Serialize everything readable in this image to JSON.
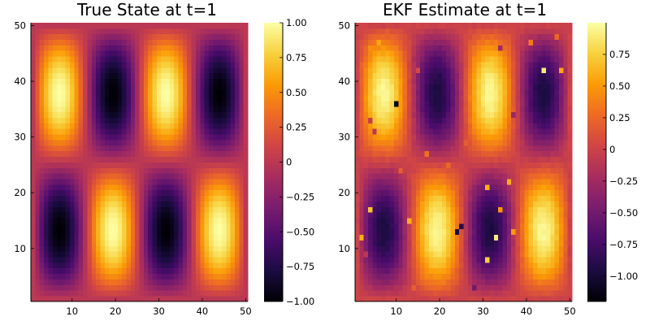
{
  "chart_data": [
    {
      "type": "heatmap",
      "title": "True State at t=1",
      "colormap": "inferno",
      "grid_size": [
        50,
        50
      ],
      "xlim": [
        0.5,
        50.5
      ],
      "ylim": [
        0.5,
        50.5
      ],
      "x_ticks": [
        10,
        20,
        30,
        40,
        50
      ],
      "x_tick_labels": [
        "10",
        "20",
        "30",
        "40",
        "50"
      ],
      "y_ticks": [
        10,
        20,
        30,
        40,
        50
      ],
      "y_tick_labels": [
        "10",
        "20",
        "30",
        "40",
        "50"
      ],
      "field": "z(x,y) = sin(2*pi*(x-1)/24.5) * -sin(2*pi*(y-1)/49), x,y = 1..50",
      "zlim": [
        -1.0,
        1.0
      ],
      "colorbar_ticks": [
        1.0,
        0.75,
        0.5,
        0.25,
        0,
        -0.25,
        -0.5,
        -0.75,
        -1.0
      ],
      "colorbar_labels": [
        "1.00",
        "0.75",
        "0.50",
        "0.25",
        "0",
        "−0.25",
        "−0.50",
        "−0.75",
        "−1.00"
      ]
    },
    {
      "type": "heatmap",
      "title": "EKF Estimate at t=1",
      "colormap": "inferno",
      "grid_size": [
        50,
        50
      ],
      "xlim": [
        0.5,
        50.5
      ],
      "ylim": [
        0.5,
        50.5
      ],
      "x_ticks": [
        10,
        20,
        30,
        40,
        50
      ],
      "x_tick_labels": [
        "10",
        "20",
        "30",
        "40",
        "50"
      ],
      "y_ticks": [
        10,
        20,
        30,
        40,
        50
      ],
      "y_tick_labels": [
        "10",
        "20",
        "30",
        "40",
        "50"
      ],
      "field": "true state with small estimation noise and scattered outlier pixels",
      "zlim": [
        -1.2,
        1.0
      ],
      "colorbar_ticks": [
        0.75,
        0.5,
        0.25,
        0,
        -0.25,
        -0.5,
        -0.75,
        -1.0
      ],
      "colorbar_labels": [
        "0.75",
        "0.50",
        "0.25",
        "0",
        "−0.25",
        "−0.50",
        "−0.75",
        "−1.00"
      ],
      "outliers": [
        [
          10,
          36,
          -1.2
        ],
        [
          4,
          46,
          0.45
        ],
        [
          6,
          47,
          0.55
        ],
        [
          2,
          43,
          0.25
        ],
        [
          8,
          49,
          0.2
        ],
        [
          14,
          44,
          -0.2
        ],
        [
          15,
          42,
          0.05
        ],
        [
          4,
          33,
          -0.05
        ],
        [
          5,
          31,
          -0.1
        ],
        [
          11,
          24,
          0.2
        ],
        [
          17,
          27,
          0.3
        ],
        [
          26,
          29,
          0.2
        ],
        [
          29,
          47,
          0.3
        ],
        [
          41,
          47,
          0.35
        ],
        [
          44,
          42,
          0.9
        ],
        [
          47,
          48,
          0.25
        ],
        [
          48,
          42,
          0.55
        ],
        [
          37,
          34,
          -0.3
        ],
        [
          34,
          46,
          -0.25
        ],
        [
          3,
          9,
          -0.1
        ],
        [
          4,
          17,
          0.7
        ],
        [
          2,
          12,
          0.6
        ],
        [
          25,
          14,
          -0.9
        ],
        [
          24,
          13,
          -0.95
        ],
        [
          31,
          8,
          0.75
        ],
        [
          34,
          17,
          0.5
        ],
        [
          31,
          21,
          0.6
        ],
        [
          36,
          22,
          0.6
        ],
        [
          28,
          3,
          -0.5
        ],
        [
          14,
          3,
          0.2
        ],
        [
          37,
          13,
          0.5
        ],
        [
          33,
          12,
          0.9
        ],
        [
          22,
          25,
          0.25
        ],
        [
          13,
          15,
          0.6
        ]
      ]
    }
  ],
  "colors": {
    "background": "#ffffff",
    "axis": "#000000",
    "colormap_stops": [
      "#000004",
      "#1b0c41",
      "#4a0c6b",
      "#781c6d",
      "#a52c60",
      "#cf4446",
      "#ed6925",
      "#fb9b06",
      "#f7d13d",
      "#fcffa4"
    ]
  }
}
